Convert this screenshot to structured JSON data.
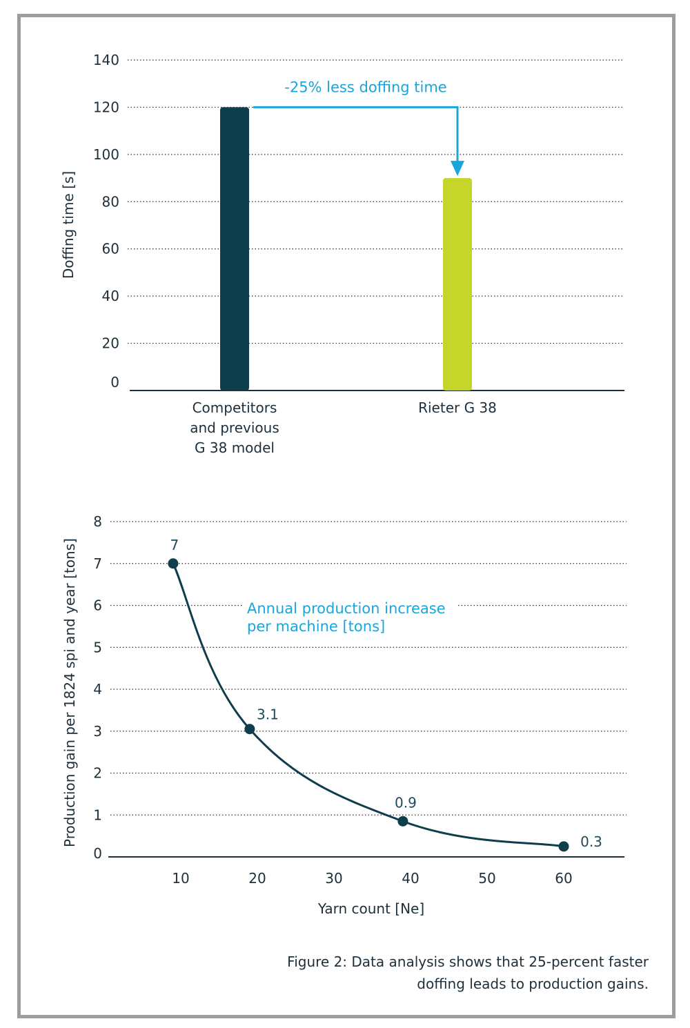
{
  "chart_data": [
    {
      "type": "bar",
      "title": "",
      "xlabel": "",
      "ylabel": "Doffing time [s]",
      "ylim": [
        0,
        140
      ],
      "yticks": [
        0,
        20,
        40,
        60,
        80,
        100,
        120,
        140
      ],
      "grid": true,
      "categories": [
        [
          "Competitors",
          "and previous",
          "G 38 model"
        ],
        [
          "Rieter G 38"
        ]
      ],
      "values": [
        120,
        90
      ],
      "colors": [
        "#0e3d4c",
        "#c5d52a"
      ],
      "annotation": "-25% less doffing time",
      "annotation_color": "#1aa5dc"
    },
    {
      "type": "line",
      "title": "",
      "xlabel": "Yarn count [Ne]",
      "ylabel": "Production gain per 1824 spi and year [tons]",
      "ylim": [
        0,
        8
      ],
      "yticks": [
        0,
        1,
        2,
        3,
        4,
        5,
        6,
        7,
        8
      ],
      "xticks": [
        10,
        20,
        30,
        40,
        50,
        60
      ],
      "grid": true,
      "series": [
        {
          "x": [
            9,
            19,
            39,
            60
          ],
          "y": [
            7,
            3.05,
            0.85,
            0.25
          ],
          "labels": [
            "7",
            "3.1",
            "0.9",
            "0.3"
          ],
          "color": "#0e3d4c"
        }
      ],
      "annotation": [
        "Annual production increase",
        "per machine [tons]"
      ],
      "annotation_color": "#1aa5dc"
    }
  ],
  "caption": {
    "line1": "Figure 2: Data analysis shows that 25-percent faster",
    "line2": "doffing leads to production gains."
  }
}
